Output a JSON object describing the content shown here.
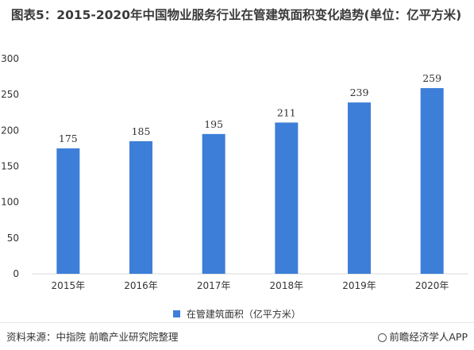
{
  "title": "图表5：2015-2020年中国物业服务行业在管建筑面积变化趋势(单位：亿平方米)",
  "chart_data": {
    "type": "bar",
    "categories": [
      "2015年",
      "2016年",
      "2017年",
      "2018年",
      "2019年",
      "2020年"
    ],
    "series": [
      {
        "name": "在管建筑面积（亿平方米）",
        "values": [
          175,
          185,
          195,
          211,
          239,
          259
        ],
        "color": "#3d7fd8"
      }
    ],
    "ylim": [
      0,
      300
    ],
    "yticks": [
      0,
      50,
      100,
      150,
      200,
      250,
      300
    ],
    "grid": false,
    "legend": "bottom",
    "data_labels": true
  },
  "footer": {
    "source": "资料来源：中指院 前瞻产业研究院整理",
    "brand": "前瞻经济学人APP",
    "brand_icon": "brand-logo-icon"
  }
}
